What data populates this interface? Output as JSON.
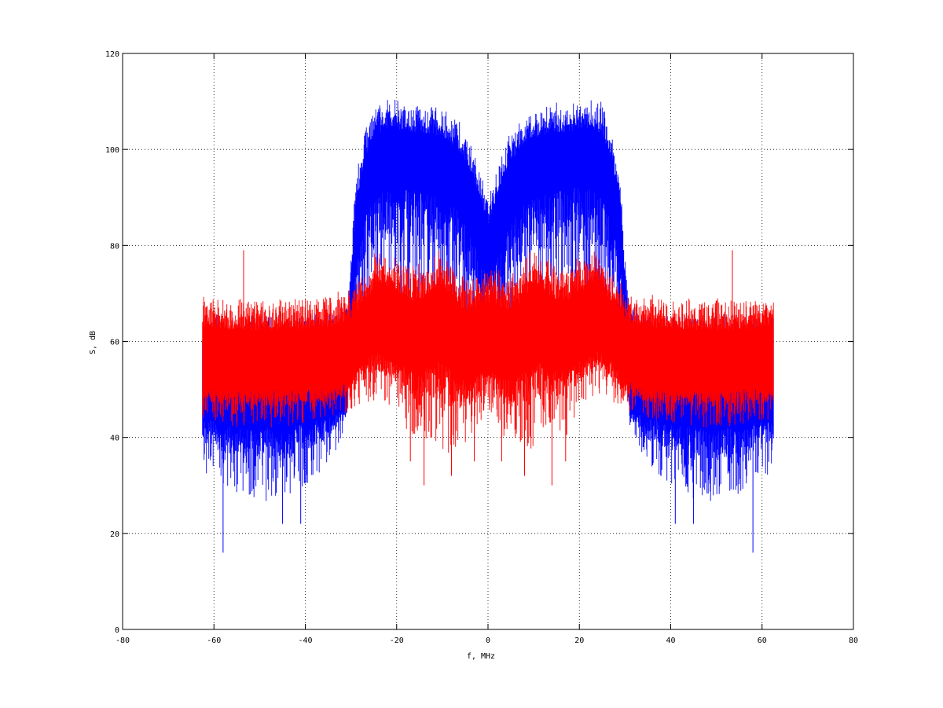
{
  "figure": {
    "background": "#ffffff"
  },
  "chart_data": {
    "type": "line",
    "title": "",
    "xlabel": "f, MHz",
    "ylabel": "S, dB",
    "xlim": [
      -80,
      80
    ],
    "ylim": [
      0,
      120
    ],
    "xticks": [
      -80,
      -60,
      -40,
      -20,
      0,
      20,
      40,
      60,
      80
    ],
    "yticks": [
      0,
      20,
      40,
      60,
      80,
      100,
      120
    ],
    "grid": true,
    "grid_style": "dotted",
    "legend": "none",
    "series": [
      {
        "color": "#0000ff",
        "x_range": [
          -62.5,
          62.5
        ],
        "description_points": {
          "f": [
            -62.5,
            -55,
            -45,
            -35,
            -31,
            -30,
            -29,
            -27,
            -25,
            -22,
            -18,
            -14,
            -10,
            -7,
            -5,
            -3,
            -1.5,
            0,
            1.5,
            3,
            5,
            7,
            10,
            14,
            18,
            22,
            25,
            27,
            29,
            30,
            31,
            35,
            45,
            55,
            62.5
          ],
          "upper": [
            66,
            66,
            66,
            67,
            68,
            78,
            94,
            104,
            110,
            111,
            110,
            110,
            109,
            107,
            104,
            100,
            95,
            90,
            95,
            100,
            104,
            107,
            109,
            110,
            110,
            111,
            110,
            104,
            94,
            78,
            68,
            67,
            66,
            66,
            66
          ],
          "lower": [
            32,
            28,
            26,
            34,
            42,
            55,
            60,
            64,
            66,
            66,
            66,
            65,
            64,
            62,
            60,
            58,
            62,
            70,
            62,
            58,
            60,
            62,
            64,
            65,
            66,
            66,
            66,
            64,
            60,
            55,
            42,
            34,
            26,
            28,
            32
          ],
          "dense_low": [
            44,
            42,
            42,
            44,
            46,
            60,
            76,
            86,
            90,
            92,
            92,
            91,
            90,
            88,
            85,
            80,
            76,
            74,
            76,
            80,
            85,
            88,
            90,
            91,
            92,
            92,
            90,
            86,
            76,
            60,
            46,
            44,
            42,
            42,
            44
          ]
        },
        "min_spikes": [
          [
            -58,
            16
          ],
          [
            -45,
            22
          ],
          [
            -41,
            22
          ],
          [
            58,
            16
          ],
          [
            45,
            22
          ],
          [
            41,
            22
          ]
        ]
      },
      {
        "color": "#ff0000",
        "x_range": [
          -62.5,
          62.5
        ],
        "description_points": {
          "f": [
            -62.5,
            -55,
            -45,
            -35,
            -30,
            -27,
            -24,
            -20,
            -17,
            -14,
            -11,
            -9,
            -7,
            -5,
            -3,
            -1,
            0,
            1,
            3,
            5,
            7,
            9,
            11,
            14,
            17,
            20,
            24,
            27,
            30,
            35,
            45,
            55,
            62.5
          ],
          "upper": [
            70,
            69,
            69,
            70,
            71,
            75,
            80,
            78,
            76,
            77,
            80,
            79,
            76,
            74,
            75,
            76,
            75,
            76,
            75,
            74,
            76,
            79,
            80,
            77,
            76,
            78,
            80,
            75,
            71,
            70,
            69,
            69,
            70
          ],
          "lower": [
            44,
            42,
            42,
            44,
            45,
            47,
            48,
            46,
            40,
            40,
            38,
            36,
            38,
            38,
            40,
            44,
            46,
            44,
            40,
            38,
            38,
            36,
            38,
            40,
            40,
            46,
            48,
            47,
            45,
            44,
            42,
            42,
            44
          ],
          "dense_low": [
            50,
            50,
            50,
            50,
            52,
            56,
            58,
            56,
            54,
            54,
            56,
            55,
            53,
            52,
            52,
            54,
            54,
            54,
            52,
            52,
            53,
            55,
            56,
            54,
            54,
            56,
            58,
            56,
            52,
            50,
            50,
            50,
            50
          ]
        },
        "max_spikes": [
          [
            -53.5,
            79
          ],
          [
            53.5,
            79
          ]
        ],
        "min_spikes": [
          [
            -17,
            35
          ],
          [
            -14,
            30
          ],
          [
            -8,
            32
          ],
          [
            -3,
            35
          ],
          [
            3,
            35
          ],
          [
            8,
            32
          ],
          [
            14,
            30
          ],
          [
            17,
            35
          ]
        ]
      }
    ]
  }
}
